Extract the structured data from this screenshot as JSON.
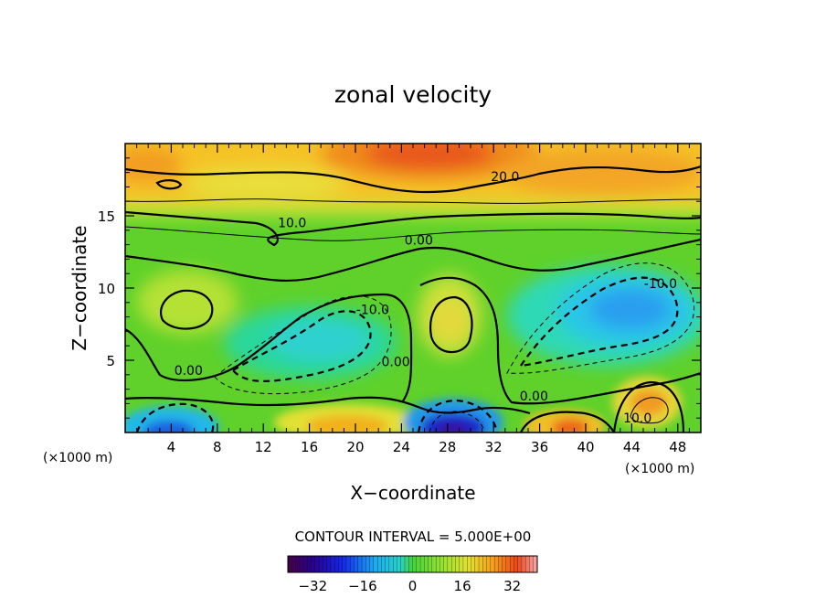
{
  "chart_data": {
    "type": "heatmap",
    "title": "zonal velocity",
    "xlabel": "X−coordinate",
    "ylabel": "Z−coordinate",
    "x_unit": "(×1000 m)",
    "x_ticks": [
      4,
      8,
      12,
      16,
      20,
      24,
      28,
      32,
      36,
      40,
      44,
      48
    ],
    "y_ticks": [
      5,
      10,
      15
    ],
    "xlim": [
      0,
      50
    ],
    "ylim": [
      0,
      20
    ],
    "contour_interval_text": "CONTOUR INTERVAL = 5.000E+00",
    "colorbar": {
      "ticks": [
        -32,
        -16,
        0,
        16,
        32
      ],
      "tick_labels": [
        "−32",
        "−16",
        "0",
        "16",
        "32"
      ],
      "range": [
        -40,
        40
      ]
    },
    "contour_labels": [
      {
        "text": "20.0",
        "x": 33,
        "y": 17.4
      },
      {
        "text": "10.0",
        "x": 14.5,
        "y": 14.2
      },
      {
        "text": "0.00",
        "x": 25.5,
        "y": 13.0
      },
      {
        "text": "0.00",
        "x": 5.5,
        "y": 4.0
      },
      {
        "text": "-10.0",
        "x": 21.5,
        "y": 8.2
      },
      {
        "text": "0.00",
        "x": 23.5,
        "y": 4.6
      },
      {
        "text": "-10.0",
        "x": 46.5,
        "y": 10.0
      },
      {
        "text": "0.00",
        "x": 35.5,
        "y": 2.2
      },
      {
        "text": "10.0",
        "x": 44.5,
        "y": 0.7
      }
    ],
    "features": [
      {
        "name": "upper-jet-west",
        "x": 3,
        "y": 18.5,
        "value": 22
      },
      {
        "name": "upper-jet-center",
        "x": 26.5,
        "y": 18.5,
        "value": 30
      },
      {
        "name": "upper-jet-east",
        "x": 42,
        "y": 18,
        "value": 24
      },
      {
        "name": "mid-level-plateau",
        "x": 25,
        "y": 13,
        "value": 4
      },
      {
        "name": "west-positive-cell",
        "x": 5,
        "y": 9,
        "value": 10
      },
      {
        "name": "negative-cell-west",
        "x": 19,
        "y": 7,
        "value": -16
      },
      {
        "name": "positive-cell-center",
        "x": 28,
        "y": 8,
        "value": 12
      },
      {
        "name": "negative-cell-east",
        "x": 44.5,
        "y": 8.5,
        "value": -22
      },
      {
        "name": "surface-negative-west",
        "x": 3.5,
        "y": 0.5,
        "value": -24
      },
      {
        "name": "surface-positive-20",
        "x": 19,
        "y": 0.7,
        "value": 20
      },
      {
        "name": "surface-negative-center",
        "x": 28.5,
        "y": 0.5,
        "value": -36
      },
      {
        "name": "surface-positive-east",
        "x": 38.5,
        "y": 0.7,
        "value": 27
      },
      {
        "name": "surface-positive-44",
        "x": 45.5,
        "y": 1.6,
        "value": 24
      }
    ]
  }
}
